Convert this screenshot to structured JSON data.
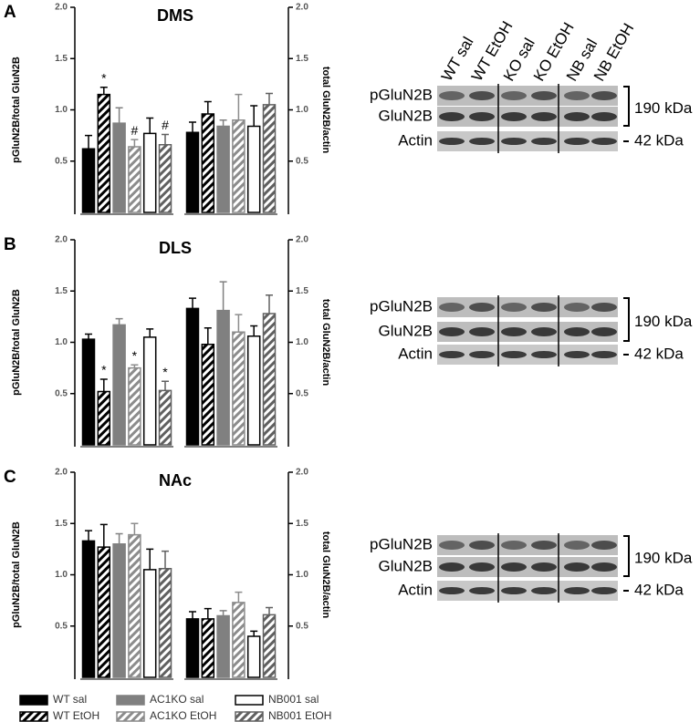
{
  "legend": [
    {
      "name": "WT sal",
      "color": "#000000",
      "edgecolor": "#000000",
      "hatch": false
    },
    {
      "name": "WT EtOH",
      "color": "#000000",
      "edgecolor": "#000000",
      "hatch": true
    },
    {
      "name": "AC1KO sal",
      "color": "#808080",
      "edgecolor": "#808080",
      "hatch": false
    },
    {
      "name": "AC1KO EtOH",
      "color": "#8c8c8c",
      "edgecolor": "#8c8c8c",
      "hatch": true
    },
    {
      "name": "NB001 sal",
      "color": "#ffffff",
      "edgecolor": "#000000",
      "hatch": false
    },
    {
      "name": "NB001 EtOH",
      "color": "#606060",
      "edgecolor": "#606060",
      "hatch": true
    }
  ],
  "chart_data": [
    {
      "type": "bar",
      "panel": "A",
      "title": "DMS",
      "groups": [
        {
          "axis": "left",
          "ylabel": "pGluN2B/total GluN2B",
          "ylim": [
            0,
            2
          ],
          "yticks": [
            0.5,
            {
              "value": 1,
              "label": "1.0"
            },
            1.5,
            {
              "value": 2,
              "label": "2.0"
            }
          ],
          "values": [
            0.62,
            1.15,
            0.87,
            0.64,
            0.77,
            0.66
          ],
          "errors": [
            0.13,
            0.07,
            0.15,
            0.07,
            0.15,
            0.1
          ],
          "annotations": [
            null,
            "*",
            null,
            "#",
            null,
            "#"
          ]
        },
        {
          "axis": "right",
          "ylabel": "total GluN2B/actin",
          "ylim": [
            0,
            2
          ],
          "yticks": [
            0.5,
            {
              "value": 1,
              "label": "1.0"
            },
            1.5,
            {
              "value": 2,
              "label": "2.0"
            }
          ],
          "values": [
            0.78,
            0.96,
            0.84,
            0.9,
            0.84,
            1.05
          ],
          "errors": [
            0.1,
            0.12,
            0.06,
            0.25,
            0.2,
            0.11
          ],
          "annotations": [
            null,
            null,
            null,
            null,
            null,
            null
          ]
        }
      ],
      "blot": {
        "lanes": [
          "WT sal",
          "WT EtOH",
          "KO sal",
          "KO EtOH",
          "NB sal",
          "NB EtOH"
        ],
        "rows": [
          "pGluN2B",
          "GluN2B",
          "Actin"
        ],
        "sizes": [
          "190 kDa",
          "42 kDa"
        ]
      }
    },
    {
      "type": "bar",
      "panel": "B",
      "title": "DLS",
      "groups": [
        {
          "axis": "left",
          "ylabel": "pGluN2B/total GluN2B",
          "ylim": [
            0,
            2
          ],
          "yticks": [
            0.5,
            {
              "value": 1,
              "label": "1.0"
            },
            1.5,
            {
              "value": 2,
              "label": "2.0"
            }
          ],
          "values": [
            1.03,
            0.52,
            1.17,
            0.75,
            1.05,
            0.53
          ],
          "errors": [
            0.05,
            0.12,
            0.06,
            0.03,
            0.08,
            0.09
          ],
          "annotations": [
            null,
            "*",
            null,
            "*",
            null,
            "*"
          ]
        },
        {
          "axis": "right",
          "ylabel": "total GluN2B/actin",
          "ylim": [
            0,
            2
          ],
          "yticks": [
            0.5,
            {
              "value": 1,
              "label": "1.0"
            },
            1.5,
            {
              "value": 2,
              "label": "2.0"
            }
          ],
          "values": [
            1.33,
            0.98,
            1.31,
            1.1,
            1.06,
            1.28
          ],
          "errors": [
            0.1,
            0.16,
            0.28,
            0.17,
            0.1,
            0.18
          ],
          "annotations": [
            null,
            null,
            null,
            null,
            null,
            null
          ]
        }
      ],
      "blot": {
        "rows": [
          "pGluN2B",
          "GluN2B",
          "Actin"
        ],
        "sizes": [
          "190 kDa",
          "42 kDa"
        ]
      }
    },
    {
      "type": "bar",
      "panel": "C",
      "title": "NAc",
      "groups": [
        {
          "axis": "left",
          "ylabel": "pGluN2B/total GluN2B",
          "ylim": [
            0,
            2
          ],
          "yticks": [
            0.5,
            {
              "value": 1,
              "label": "1.0"
            },
            1.5,
            {
              "value": 2,
              "label": "2.0"
            }
          ],
          "values": [
            1.33,
            1.27,
            1.3,
            1.39,
            1.05,
            1.06
          ],
          "errors": [
            0.1,
            0.22,
            0.1,
            0.11,
            0.2,
            0.17
          ],
          "annotations": [
            null,
            null,
            null,
            null,
            null,
            null
          ]
        },
        {
          "axis": "right",
          "ylabel": "total GluN2B/actin",
          "ylim": [
            0,
            2
          ],
          "yticks": [
            0.5,
            {
              "value": 1,
              "label": "1.0"
            },
            1.5,
            {
              "value": 2,
              "label": "2.0"
            }
          ],
          "values": [
            0.57,
            0.57,
            0.6,
            0.73,
            0.4,
            0.61
          ],
          "errors": [
            0.07,
            0.1,
            0.05,
            0.1,
            0.05,
            0.07
          ],
          "annotations": [
            null,
            null,
            null,
            null,
            null,
            null
          ]
        }
      ],
      "blot": {
        "rows": [
          "pGluN2B",
          "GluN2B",
          "Actin"
        ],
        "sizes": [
          "190 kDa",
          "42 kDa"
        ]
      }
    }
  ]
}
